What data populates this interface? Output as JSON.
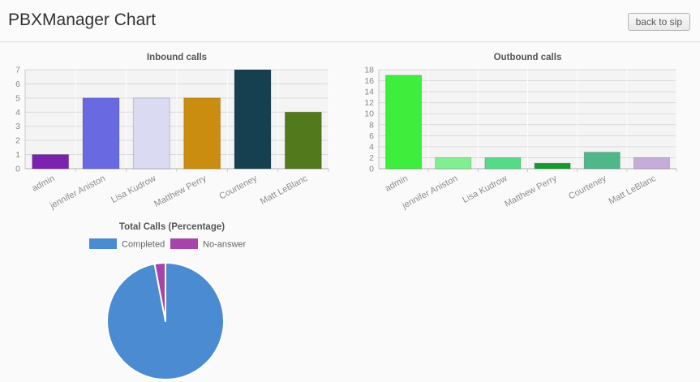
{
  "header": {
    "title": "PBXManager Chart",
    "back_button": "back to sip"
  },
  "chart_data": [
    {
      "id": "inbound",
      "type": "bar",
      "title": "Inbound calls",
      "categories": [
        "admin",
        "jennifer Aniston",
        "Lisa Kudrow",
        "Matthew Perry",
        "Courteney",
        "Matt LeBlanc"
      ],
      "values": [
        1,
        5,
        5,
        5,
        7,
        4
      ],
      "bar_colors": [
        "#7b22ae",
        "#6969e1",
        "#dadaf3",
        "#cb8d10",
        "#16404f",
        "#53791d"
      ],
      "xlabel": "",
      "ylabel": "",
      "ylim": [
        0,
        7
      ],
      "yticks": [
        0,
        1,
        2,
        3,
        4,
        5,
        6,
        7
      ],
      "grid": true,
      "legend_position": "none"
    },
    {
      "id": "outbound",
      "type": "bar",
      "title": "Outbound calls",
      "categories": [
        "admin",
        "jennifer Aniston",
        "Lisa Kudrow",
        "Matthew Perry",
        "Courteney",
        "Matt LeBlanc"
      ],
      "values": [
        17,
        2,
        2,
        1,
        3,
        2
      ],
      "bar_colors": [
        "#3dee3d",
        "#81ef90",
        "#55da87",
        "#149a2e",
        "#4fb78a",
        "#c6add9"
      ],
      "xlabel": "",
      "ylabel": "",
      "ylim": [
        0,
        18
      ],
      "yticks": [
        0,
        2,
        4,
        6,
        8,
        10,
        12,
        14,
        16,
        18
      ],
      "grid": true,
      "legend_position": "none"
    },
    {
      "id": "total",
      "type": "pie",
      "title": "Total Calls (Percentage)",
      "slices": [
        {
          "label": "Completed",
          "value": 97,
          "color": "#4a8bd2"
        },
        {
          "label": "No-answer",
          "value": 3,
          "color": "#a644a8"
        }
      ],
      "legend_position": "top"
    }
  ]
}
